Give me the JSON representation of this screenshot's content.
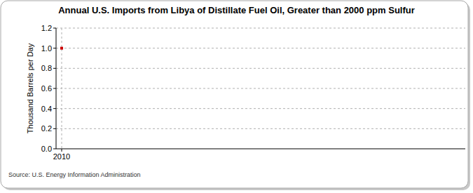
{
  "chart_data": {
    "type": "line",
    "title": "Annual U.S. Imports from Libya of Distillate Fuel Oil, Greater than 2000 ppm Sulfur",
    "y_label": "Thousand Barrels per Day",
    "source": "Source: U.S. Energy Information Administration",
    "categories": [
      "2010"
    ],
    "values": [
      1.0
    ],
    "color": "#cc0000",
    "marker": "square",
    "ylim": [
      0,
      1.2
    ],
    "yticks": [
      {
        "value": 0,
        "label": "0.0"
      },
      {
        "value": 0.2,
        "label": "0.2"
      },
      {
        "value": 0.4,
        "label": "0.4"
      },
      {
        "value": 0.6,
        "label": "0.6"
      },
      {
        "value": 0.8,
        "label": "0.8"
      },
      {
        "value": 1.0,
        "label": "1.0"
      },
      {
        "value": 1.2,
        "label": "1.2"
      }
    ],
    "grid": true
  }
}
